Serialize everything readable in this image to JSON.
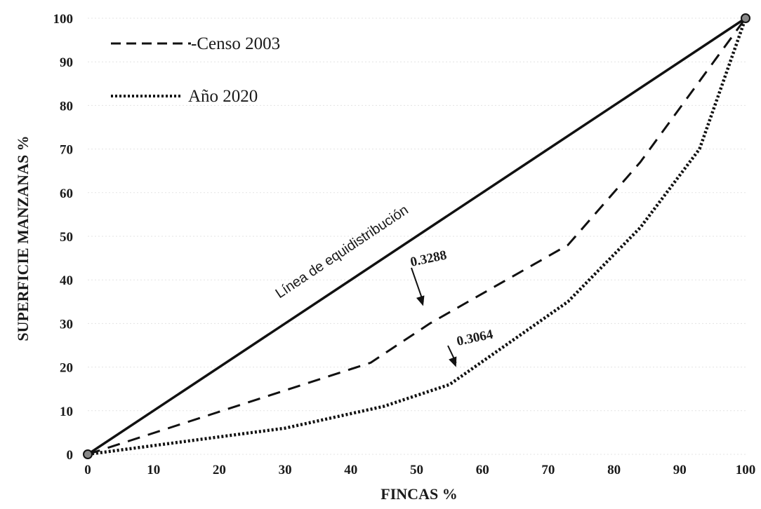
{
  "chart_data": {
    "type": "line",
    "xlabel": "FINCAS %",
    "ylabel": "SUPERFICIE MANZANAS %",
    "xlim": [
      0,
      100
    ],
    "ylim": [
      0,
      100
    ],
    "x_ticks": [
      "0",
      "10",
      "20",
      "30",
      "40",
      "50",
      "60",
      "70",
      "80",
      "90",
      "100"
    ],
    "y_ticks": [
      "0",
      "10",
      "20",
      "30",
      "40",
      "50",
      "60",
      "70",
      "80",
      "90",
      "100"
    ],
    "grid": "horizontal, faint",
    "legend_position": "top-left",
    "series": [
      {
        "name": "Censo 2003",
        "style": "dashed",
        "color": "#111111",
        "x": [
          0,
          43,
          52,
          73,
          84,
          100
        ],
        "y": [
          0,
          21,
          30,
          48,
          67,
          100
        ]
      },
      {
        "name": "Año 2020",
        "style": "dotted",
        "color": "#111111",
        "x": [
          0,
          30,
          45,
          55,
          73,
          84,
          93,
          100
        ],
        "y": [
          0,
          6,
          11,
          16,
          35,
          52,
          70,
          100
        ]
      }
    ],
    "reference_line": {
      "label": "Línea de equidistribución",
      "x": [
        0,
        100
      ],
      "y": [
        0,
        100
      ],
      "color": "#111111"
    },
    "annotations": [
      {
        "text": "0.3288",
        "arrow_to": [
          51,
          34
        ]
      },
      {
        "text": "0.3064",
        "arrow_to": [
          56,
          20
        ]
      }
    ],
    "legend": {
      "censo": "-Censo 2003",
      "anio": "Año 2020"
    }
  }
}
